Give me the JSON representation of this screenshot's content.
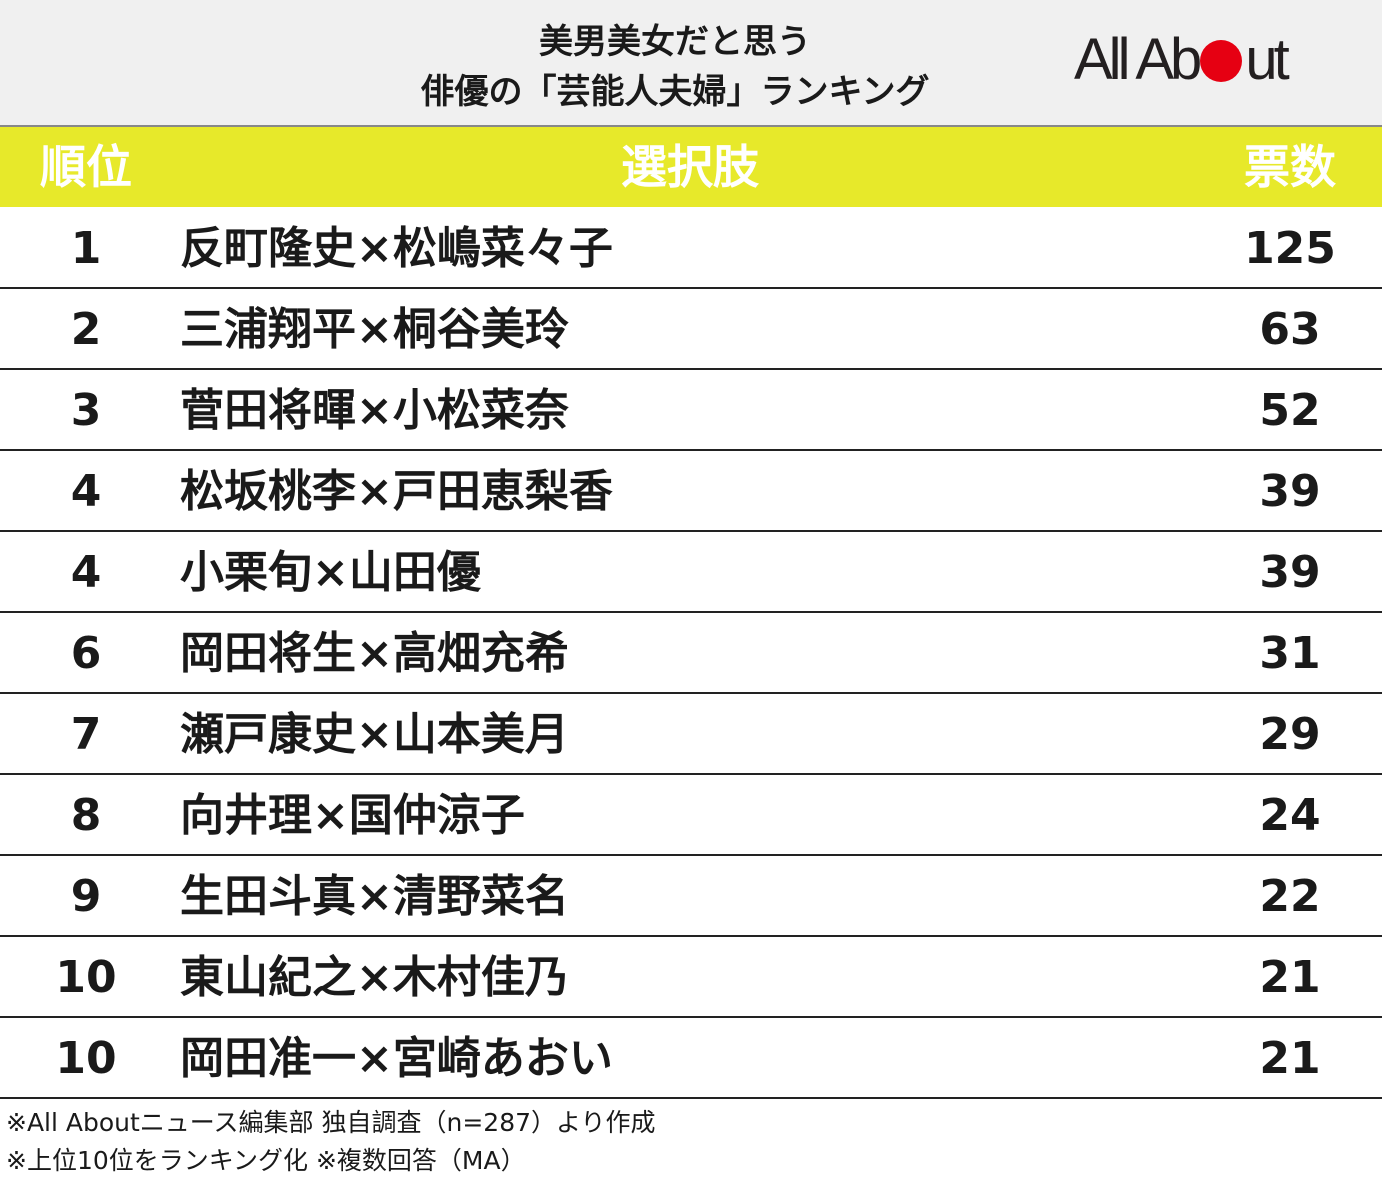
{
  "header": {
    "title_line1": "美男美女だと思う",
    "title_line2": "俳優の「芸能人夫婦」ランキング",
    "logo_text_before": "All Ab",
    "logo_text_after": "ut"
  },
  "colors": {
    "header_band": "#e7e92a",
    "title_background": "#f0f0f0",
    "logo_dot": "#e60012"
  },
  "chart_data": {
    "type": "table",
    "title": "美男美女だと思う 俳優の「芸能人夫婦」ランキング",
    "columns": [
      "順位",
      "選択肢",
      "票数"
    ],
    "rows": [
      {
        "rank": "1",
        "choice": "反町隆史×松嶋菜々子",
        "votes": 125
      },
      {
        "rank": "2",
        "choice": "三浦翔平×桐谷美玲",
        "votes": 63
      },
      {
        "rank": "3",
        "choice": "菅田将暉×小松菜奈",
        "votes": 52
      },
      {
        "rank": "4",
        "choice": "松坂桃李×戸田恵梨香",
        "votes": 39
      },
      {
        "rank": "4",
        "choice": "小栗旬×山田優",
        "votes": 39
      },
      {
        "rank": "6",
        "choice": "岡田将生×高畑充希",
        "votes": 31
      },
      {
        "rank": "7",
        "choice": "瀬戸康史×山本美月",
        "votes": 29
      },
      {
        "rank": "8",
        "choice": "向井理×国仲涼子",
        "votes": 24
      },
      {
        "rank": "9",
        "choice": "生田斗真×清野菜名",
        "votes": 22
      },
      {
        "rank": "10",
        "choice": "東山紀之×木村佳乃",
        "votes": 21
      },
      {
        "rank": "10",
        "choice": "岡田准一×宮崎あおい",
        "votes": 21
      }
    ]
  },
  "notes": [
    "※All Aboutニュース編集部 独自調査（n=287）より作成",
    "※上位10位をランキング化 ※複数回答（MA）"
  ]
}
